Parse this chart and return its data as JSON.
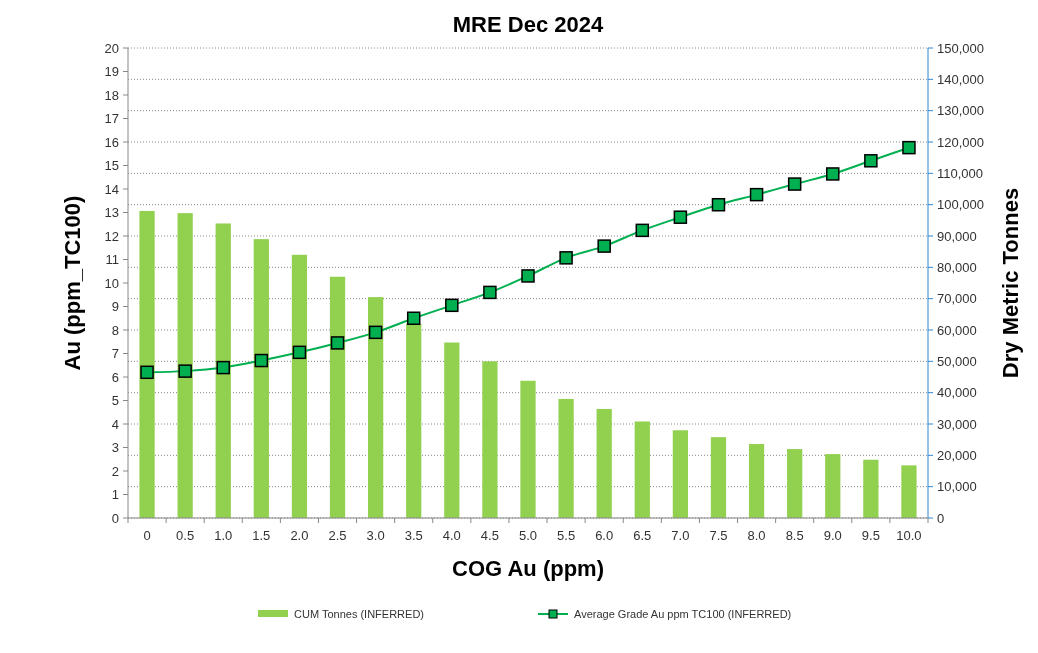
{
  "chart_data": {
    "type": "bar",
    "title": "MRE Dec 2024",
    "xlabel": "COG Au (ppm)",
    "ylabel": "Au (ppm_TC100)",
    "y2label": "Dry Metric Tonnes",
    "categories": [
      "0",
      "0.5",
      "1.0",
      "1.5",
      "2.0",
      "2.5",
      "3.0",
      "3.5",
      "4.0",
      "4.5",
      "5.0",
      "5.5",
      "6.0",
      "6.5",
      "7.0",
      "7.5",
      "8.0",
      "8.5",
      "9.0",
      "9.5",
      "10.0"
    ],
    "series": [
      {
        "name": "CUM Tonnes (INFERRED)",
        "axis": "y2",
        "color": "#92d050",
        "values": [
          98000,
          97300,
          94000,
          89000,
          84000,
          77000,
          70500,
          62000,
          56000,
          50000,
          43800,
          38000,
          34800,
          30800,
          28000,
          25800,
          23600,
          22000,
          20400,
          18600,
          16800
        ]
      },
      {
        "name": "Average Grade Au ppm TC100 (INFERRED)",
        "type": "line",
        "color": "#00b050",
        "marker": "square",
        "values": [
          6.2,
          6.25,
          6.4,
          6.7,
          7.05,
          7.45,
          7.9,
          8.5,
          9.05,
          9.6,
          10.3,
          11.07,
          11.57,
          12.24,
          12.8,
          13.33,
          13.76,
          14.21,
          14.64,
          15.2,
          15.76
        ]
      }
    ],
    "ylim": [
      0,
      20
    ],
    "yticks": [
      0,
      1,
      2,
      3,
      4,
      5,
      6,
      7,
      8,
      9,
      10,
      11,
      12,
      13,
      14,
      15,
      16,
      17,
      18,
      19,
      20
    ],
    "y2lim": [
      0,
      150000
    ],
    "y2ticks": [
      {
        "value": 0,
        "label": "0"
      },
      {
        "value": 10000,
        "label": "10,000"
      },
      {
        "value": 20000,
        "label": "20,000"
      },
      {
        "value": 30000,
        "label": "30,000"
      },
      {
        "value": 40000,
        "label": "40,000"
      },
      {
        "value": 50000,
        "label": "50,000"
      },
      {
        "value": 60000,
        "label": "60,000"
      },
      {
        "value": 70000,
        "label": "70,000"
      },
      {
        "value": 80000,
        "label": "80,000"
      },
      {
        "value": 90000,
        "label": "90,000"
      },
      {
        "value": 100000,
        "label": "100,000"
      },
      {
        "value": 110000,
        "label": "110,000"
      },
      {
        "value": 120000,
        "label": "120,000"
      },
      {
        "value": 130000,
        "label": "130,000"
      },
      {
        "value": 140000,
        "label": "140,000"
      },
      {
        "value": 150000,
        "label": "150,000"
      }
    ],
    "grid": true,
    "legend": "bottom"
  }
}
